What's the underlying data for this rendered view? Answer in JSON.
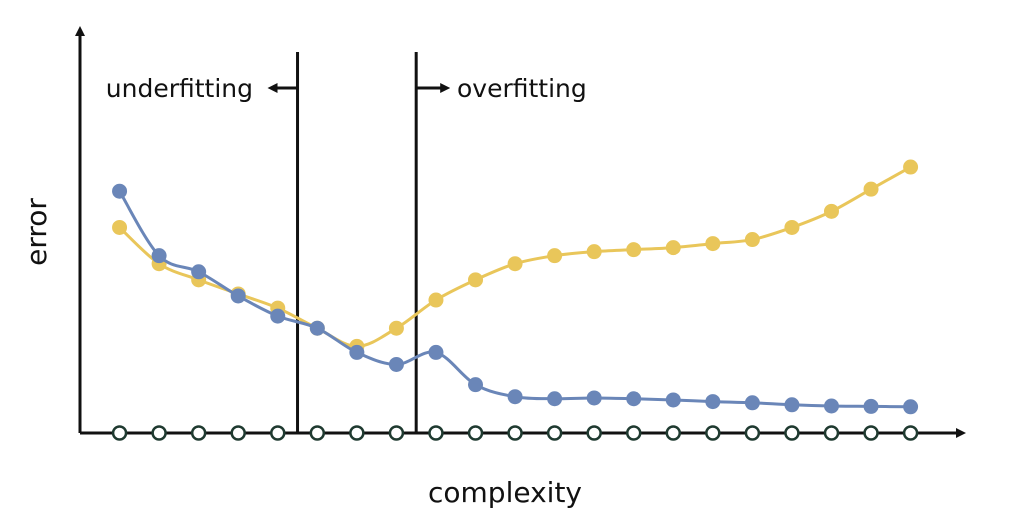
{
  "chart_data": {
    "type": "line",
    "title": "",
    "xlabel": "complexity",
    "ylabel": "error",
    "x": [
      1,
      2,
      3,
      4,
      5,
      6,
      7,
      8,
      9,
      10,
      11,
      12,
      13,
      14,
      15,
      16,
      17,
      18,
      19,
      20,
      21
    ],
    "xlim": [
      0,
      22.3
    ],
    "ylim": [
      0,
      100
    ],
    "grid": false,
    "series": [
      {
        "values": [
          60,
          44,
          40,
          34,
          29,
          26,
          20,
          17,
          20,
          12,
          9,
          8.5,
          8.7,
          8.5,
          8.2,
          7.8,
          7.5,
          7.0,
          6.7,
          6.6,
          6.5
        ],
        "color": "#6a86b8"
      },
      {
        "values": [
          51,
          42,
          38,
          34.5,
          31,
          26,
          21.5,
          26,
          33,
          38,
          42,
          44,
          45,
          45.5,
          46,
          47,
          48,
          51,
          55,
          60.5,
          66
        ],
        "color": "#e9c65a"
      }
    ],
    "baseline_markers": {
      "count": 21,
      "stroke": "#1f3a30",
      "fill": "#ffffff"
    },
    "regions": [
      {
        "label": "underfitting",
        "boundary_x": 5.5,
        "arrow_direction": "left"
      },
      {
        "label": "overfitting",
        "boundary_x": 8.5,
        "arrow_direction": "right"
      }
    ]
  }
}
